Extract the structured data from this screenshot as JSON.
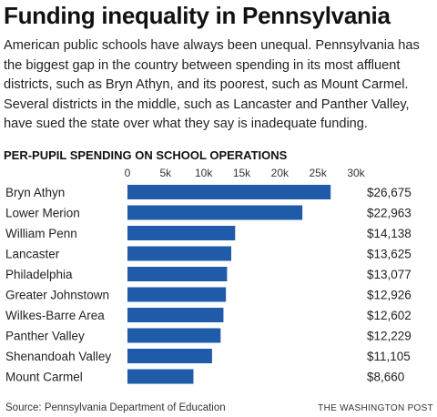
{
  "header": {
    "title": "Funding inequality in Pennsylvania",
    "intro": "American public schools have always been unequal. Pennsylvania has the biggest gap in the country between spending in its most affluent districts, such as Bryn Athyn, and its poorest, such as Mount Carmel. Several districts in the middle, such as Lancaster and Panther Valley, have sued the state over what they say is inadequate funding."
  },
  "footer": {
    "source": "Source: Pennsylvania Department of Education",
    "credit": "THE WASHINGTON POST"
  },
  "colors": {
    "bar": "#1f5ba8",
    "text": "#222222"
  },
  "chart_data": {
    "type": "bar",
    "orientation": "horizontal",
    "title": "PER-PUPIL SPENDING ON SCHOOL OPERATIONS",
    "xlabel": "",
    "ylabel": "",
    "xlim": [
      0,
      30000
    ],
    "ticks": [
      {
        "value": 0,
        "label": "0"
      },
      {
        "value": 5000,
        "label": "5k"
      },
      {
        "value": 10000,
        "label": "10k"
      },
      {
        "value": 15000,
        "label": "15k"
      },
      {
        "value": 20000,
        "label": "20k"
      },
      {
        "value": 25000,
        "label": "25k"
      },
      {
        "value": 30000,
        "label": "30k"
      }
    ],
    "grid": false,
    "categories": [
      "Bryn Athyn",
      "Lower Merion",
      "William Penn",
      "Lancaster",
      "Philadelphia",
      "Greater Johnstown",
      "Wilkes-Barre Area",
      "Panther Valley",
      "Shenandoah Valley",
      "Mount Carmel"
    ],
    "values": [
      26675,
      22963,
      14138,
      13625,
      13077,
      12926,
      12602,
      12229,
      11105,
      8660
    ],
    "value_labels": [
      "$26,675",
      "$22,963",
      "$14,138",
      "$13,625",
      "$13,077",
      "$12,926",
      "$12,602",
      "$12,229",
      "$11,105",
      "$8,660"
    ]
  }
}
